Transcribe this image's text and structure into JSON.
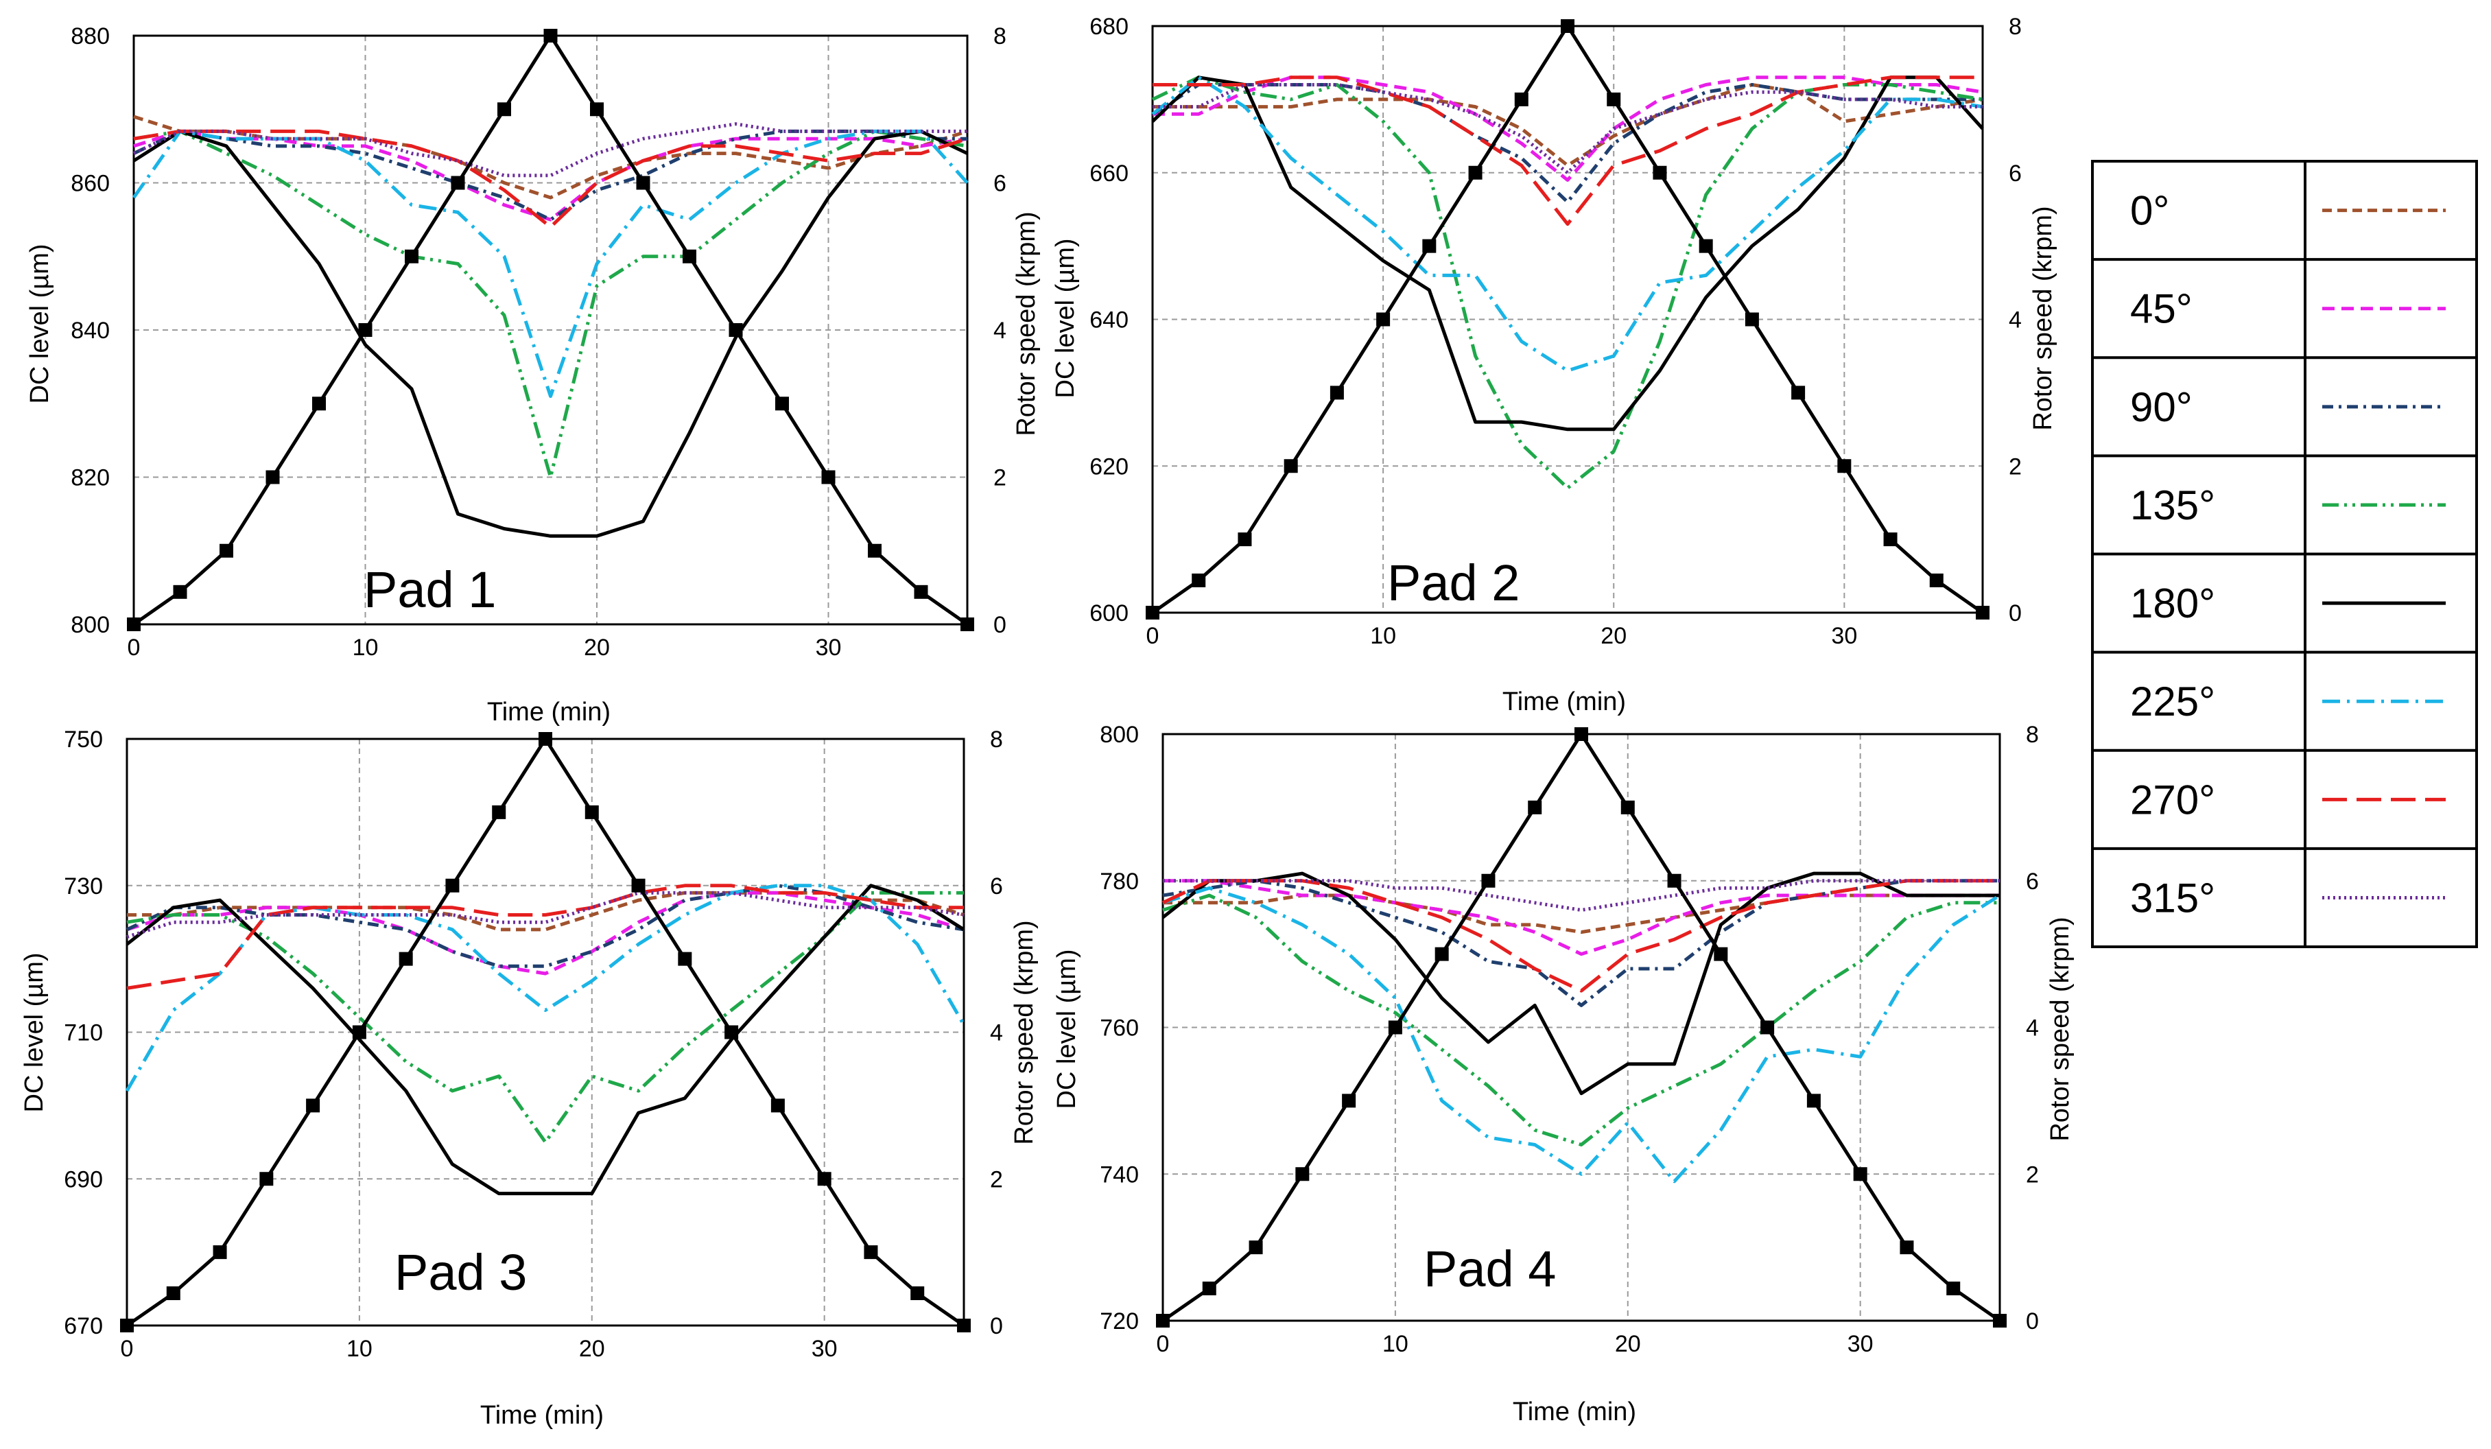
{
  "figure_title": "",
  "legend": {
    "entries": [
      {
        "label": "0°",
        "color": "#a0522d",
        "dash": "14,8"
      },
      {
        "label": "45°",
        "color": "#e81ee8",
        "dash": "18,10"
      },
      {
        "label": "90°",
        "color": "#1f3f6e",
        "dash": "16,8,4,8"
      },
      {
        "label": "135°",
        "color": "#1fa84a",
        "dash": "24,8,4,8,4,8"
      },
      {
        "label": "180°",
        "color": "#000000",
        "dash": ""
      },
      {
        "label": "225°",
        "color": "#1ab4e6",
        "dash": "26,10,4,10"
      },
      {
        "label": "270°",
        "color": "#e61e1e",
        "dash": "36,14"
      },
      {
        "label": "315°",
        "color": "#6a2c9a",
        "dash": "3,5"
      }
    ]
  },
  "chart_data": [
    {
      "type": "line",
      "panel_label": "Pad 1",
      "xlabel": "Time  (min)",
      "ylabel": "DC level (µm)",
      "y2label": "Rotor speed (krpm)",
      "xlim": [
        0,
        36
      ],
      "ylim": [
        800,
        880
      ],
      "y2lim": [
        0,
        8
      ],
      "xticks": [
        0,
        10,
        20,
        30
      ],
      "yticks": [
        800,
        820,
        840,
        860,
        880
      ],
      "y2ticks": [
        0,
        2,
        4,
        6,
        8
      ],
      "x": [
        0,
        2,
        4,
        6,
        8,
        10,
        12,
        14,
        16,
        18,
        20,
        22,
        24,
        26,
        28,
        30,
        32,
        34,
        36
      ],
      "rotor_speed": [
        0,
        0.44,
        1.0,
        2.0,
        3.0,
        4.0,
        5.0,
        6.0,
        7.0,
        8.0,
        7.0,
        6.0,
        5.0,
        4.0,
        3.0,
        2.0,
        1.0,
        0.44,
        0
      ],
      "series": [
        {
          "name": "0°",
          "values": [
            869,
            867,
            867,
            866,
            866,
            866,
            865,
            863,
            860,
            858,
            861,
            863,
            864,
            864,
            863,
            862,
            864,
            865,
            867
          ]
        },
        {
          "name": "45°",
          "values": [
            865,
            867,
            866,
            866,
            865,
            865,
            863,
            860,
            857,
            855,
            860,
            863,
            865,
            866,
            866,
            866,
            866,
            865,
            866
          ]
        },
        {
          "name": "90°",
          "values": [
            864,
            867,
            866,
            865,
            865,
            864,
            862,
            860,
            858,
            855,
            859,
            861,
            864,
            866,
            867,
            867,
            867,
            866,
            866
          ]
        },
        {
          "name": "135°",
          "values": [
            866,
            867,
            864,
            861,
            857,
            853,
            850,
            849,
            842,
            820,
            846,
            850,
            850,
            855,
            860,
            864,
            867,
            866,
            865
          ]
        },
        {
          "name": "180°",
          "values": [
            863,
            867,
            865,
            857,
            849,
            838,
            832,
            815,
            813,
            812,
            812,
            814,
            826,
            839,
            848,
            858,
            866,
            867,
            864
          ]
        },
        {
          "name": "225°",
          "values": [
            858,
            867,
            866,
            866,
            866,
            863,
            857,
            856,
            850,
            831,
            849,
            857,
            855,
            860,
            864,
            866,
            867,
            867,
            860
          ]
        },
        {
          "name": "270°",
          "values": [
            866,
            867,
            867,
            867,
            867,
            866,
            865,
            863,
            859,
            854,
            860,
            863,
            865,
            865,
            864,
            863,
            864,
            864,
            866
          ]
        },
        {
          "name": "315°",
          "values": [
            864,
            867,
            867,
            866,
            866,
            866,
            864,
            863,
            861,
            861,
            864,
            866,
            867,
            868,
            867,
            867,
            867,
            867,
            867
          ]
        }
      ]
    },
    {
      "type": "line",
      "panel_label": "Pad 2",
      "xlabel": "Time  (min)",
      "ylabel": "DC level (µm)",
      "y2label": "Rotor speed (krpm)",
      "xlim": [
        0,
        36
      ],
      "ylim": [
        600,
        680
      ],
      "y2lim": [
        0,
        8
      ],
      "xticks": [
        0,
        10,
        20,
        30
      ],
      "yticks": [
        600,
        620,
        640,
        660,
        680
      ],
      "y2ticks": [
        0,
        2,
        4,
        6,
        8
      ],
      "x": [
        0,
        2,
        4,
        6,
        8,
        10,
        12,
        14,
        16,
        18,
        20,
        22,
        24,
        26,
        28,
        30,
        32,
        34,
        36
      ],
      "rotor_speed": [
        0,
        0.44,
        1.0,
        2.0,
        3.0,
        4.0,
        5.0,
        6.0,
        7.0,
        8.0,
        7.0,
        6.0,
        5.0,
        4.0,
        3.0,
        2.0,
        1.0,
        0.44,
        0
      ],
      "series": [
        {
          "name": "0°",
          "values": [
            669,
            669,
            669,
            669,
            670,
            670,
            670,
            669,
            666,
            661,
            665,
            668,
            670,
            672,
            671,
            667,
            668,
            669,
            670
          ]
        },
        {
          "name": "45°",
          "values": [
            668,
            668,
            671,
            673,
            673,
            672,
            671,
            668,
            664,
            659,
            666,
            670,
            672,
            673,
            673,
            673,
            672,
            672,
            671
          ]
        },
        {
          "name": "90°",
          "values": [
            668,
            672,
            672,
            672,
            672,
            671,
            669,
            665,
            662,
            656,
            664,
            668,
            671,
            672,
            671,
            670,
            670,
            670,
            670
          ]
        },
        {
          "name": "135°",
          "values": [
            670,
            673,
            671,
            670,
            672,
            667,
            660,
            635,
            623,
            617,
            622,
            637,
            657,
            666,
            671,
            672,
            672,
            671,
            670
          ]
        },
        {
          "name": "180°",
          "values": [
            667,
            673,
            672,
            658,
            653,
            648,
            644,
            626,
            626,
            625,
            625,
            633,
            643,
            650,
            655,
            662,
            673,
            673,
            666
          ]
        },
        {
          "name": "225°",
          "values": [
            668,
            673,
            669,
            662,
            657,
            652,
            646,
            646,
            637,
            633,
            635,
            645,
            646,
            652,
            658,
            663,
            670,
            670,
            669
          ]
        },
        {
          "name": "270°",
          "values": [
            672,
            672,
            672,
            673,
            673,
            671,
            669,
            665,
            661,
            653,
            661,
            663,
            666,
            668,
            671,
            672,
            673,
            673,
            673
          ]
        },
        {
          "name": "315°",
          "values": [
            669,
            669,
            672,
            672,
            672,
            671,
            670,
            668,
            665,
            660,
            666,
            668,
            670,
            671,
            671,
            670,
            670,
            669,
            669
          ]
        }
      ]
    },
    {
      "type": "line",
      "panel_label": "Pad 3",
      "xlabel": "Time  (min)",
      "ylabel": "DC level (µm)",
      "y2label": "Rotor speed (krpm)",
      "xlim": [
        0,
        36
      ],
      "ylim": [
        670,
        750
      ],
      "y2lim": [
        0,
        8
      ],
      "xticks": [
        0,
        10,
        20,
        30
      ],
      "yticks": [
        670,
        690,
        710,
        730,
        750
      ],
      "y2ticks": [
        0,
        2,
        4,
        6,
        8
      ],
      "x": [
        0,
        2,
        4,
        6,
        8,
        10,
        12,
        14,
        16,
        18,
        20,
        22,
        24,
        26,
        28,
        30,
        32,
        34,
        36
      ],
      "rotor_speed": [
        0,
        0.44,
        1.0,
        2.0,
        3.0,
        4.0,
        5.0,
        6.0,
        7.0,
        8.0,
        7.0,
        6.0,
        5.0,
        4.0,
        3.0,
        2.0,
        1.0,
        0.44,
        0
      ],
      "series": [
        {
          "name": "0°",
          "values": [
            726,
            726,
            727,
            727,
            727,
            727,
            727,
            726,
            724,
            724,
            726,
            728,
            729,
            729,
            729,
            729,
            728,
            728,
            726
          ]
        },
        {
          "name": "45°",
          "values": [
            724,
            726,
            726,
            727,
            727,
            726,
            724,
            721,
            719,
            718,
            721,
            725,
            728,
            729,
            729,
            728,
            727,
            726,
            724
          ]
        },
        {
          "name": "90°",
          "values": [
            724,
            727,
            727,
            726,
            726,
            725,
            724,
            721,
            719,
            719,
            721,
            724,
            728,
            729,
            730,
            729,
            727,
            725,
            724
          ]
        },
        {
          "name": "135°",
          "values": [
            725,
            726,
            726,
            723,
            718,
            712,
            706,
            702,
            704,
            695,
            704,
            702,
            708,
            713,
            718,
            723,
            729,
            729,
            729
          ]
        },
        {
          "name": "180°",
          "values": [
            722,
            727,
            728,
            722,
            716,
            709,
            702,
            692,
            688,
            688,
            688,
            699,
            701,
            709,
            716,
            723,
            730,
            728,
            724
          ]
        },
        {
          "name": "225°",
          "values": [
            702,
            713,
            718,
            726,
            727,
            726,
            726,
            724,
            718,
            713,
            717,
            722,
            726,
            729,
            730,
            730,
            728,
            722,
            711
          ]
        },
        {
          "name": "270°",
          "values": [
            716,
            717,
            718,
            726,
            727,
            727,
            727,
            727,
            726,
            726,
            727,
            729,
            730,
            730,
            729,
            729,
            728,
            727,
            727
          ]
        },
        {
          "name": "315°",
          "values": [
            723,
            725,
            725,
            726,
            726,
            726,
            726,
            726,
            725,
            725,
            727,
            729,
            729,
            729,
            728,
            727,
            727,
            727,
            726
          ]
        }
      ]
    },
    {
      "type": "line",
      "panel_label": "Pad 4",
      "xlabel": "Time  (min)",
      "ylabel": "DC level (µm)",
      "y2label": "Rotor speed (krpm)",
      "xlim": [
        0,
        36
      ],
      "ylim": [
        720,
        800
      ],
      "y2lim": [
        0,
        8
      ],
      "xticks": [
        0,
        10,
        20,
        30
      ],
      "yticks": [
        720,
        740,
        760,
        780,
        800
      ],
      "y2ticks": [
        0,
        2,
        4,
        6,
        8
      ],
      "x": [
        0,
        2,
        4,
        6,
        8,
        10,
        12,
        14,
        16,
        18,
        20,
        22,
        24,
        26,
        28,
        30,
        32,
        34,
        36
      ],
      "rotor_speed": [
        0,
        0.44,
        1.0,
        2.0,
        3.0,
        4.0,
        5.0,
        6.0,
        7.0,
        8.0,
        7.0,
        6.0,
        5.0,
        4.0,
        3.0,
        2.0,
        1.0,
        0.44,
        0
      ],
      "series": [
        {
          "name": "0°",
          "values": [
            777,
            777,
            777,
            778,
            778,
            777,
            776,
            774,
            774,
            773,
            774,
            775,
            776,
            777,
            778,
            778,
            778,
            778,
            778
          ]
        },
        {
          "name": "45°",
          "values": [
            780,
            780,
            779,
            778,
            778,
            777,
            776,
            775,
            773,
            770,
            772,
            775,
            777,
            778,
            778,
            778,
            778,
            778,
            778
          ]
        },
        {
          "name": "90°",
          "values": [
            778,
            779,
            780,
            779,
            777,
            775,
            773,
            769,
            768,
            763,
            768,
            768,
            773,
            777,
            778,
            779,
            780,
            780,
            780
          ]
        },
        {
          "name": "135°",
          "values": [
            776,
            778,
            775,
            769,
            765,
            762,
            757,
            752,
            746,
            744,
            749,
            752,
            755,
            760,
            765,
            769,
            775,
            777,
            777
          ]
        },
        {
          "name": "180°",
          "values": [
            775,
            780,
            780,
            781,
            778,
            772,
            764,
            758,
            763,
            751,
            755,
            755,
            774,
            779,
            781,
            781,
            778,
            778,
            778
          ]
        },
        {
          "name": "225°",
          "values": [
            777,
            779,
            777,
            774,
            770,
            764,
            750,
            745,
            744,
            740,
            747,
            739,
            746,
            756,
            757,
            756,
            767,
            774,
            778
          ]
        },
        {
          "name": "270°",
          "values": [
            777,
            780,
            780,
            780,
            779,
            777,
            775,
            772,
            768,
            765,
            770,
            772,
            775,
            777,
            778,
            779,
            780,
            780,
            780
          ]
        },
        {
          "name": "315°",
          "values": [
            780,
            780,
            780,
            780,
            780,
            779,
            779,
            778,
            777,
            776,
            777,
            778,
            779,
            779,
            780,
            780,
            780,
            780,
            780
          ]
        }
      ]
    }
  ]
}
